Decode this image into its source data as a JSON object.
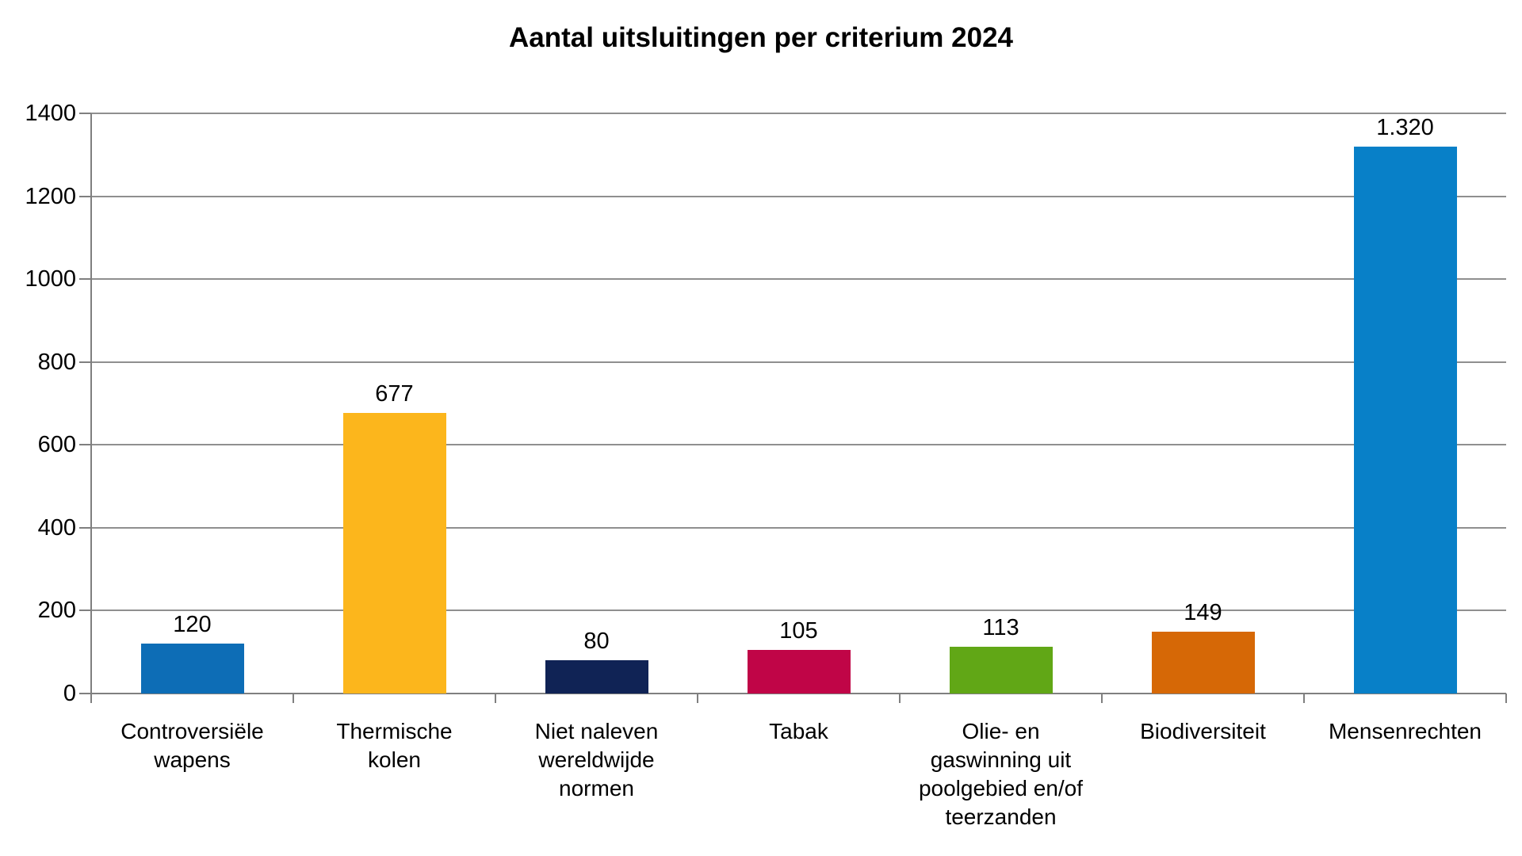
{
  "page": {
    "background": "#ffffff"
  },
  "chart_data": {
    "type": "bar",
    "title": "Aantal uitsluitingen per criterium 2024",
    "categories": [
      "Controversiële wapens",
      "Thermische kolen",
      "Niet naleven wereldwijde normen",
      "Tabak",
      "Olie- en gaswinning uit poolgebied en/of teerzanden",
      "Biodiversiteit",
      "Mensenrechten"
    ],
    "values": [
      120,
      677,
      80,
      105,
      113,
      149,
      1320
    ],
    "value_labels": [
      "120",
      "677",
      "80",
      "105",
      "113",
      "149",
      "1.320"
    ],
    "bar_colors": [
      "#0d6db6",
      "#fcb61c",
      "#102355",
      "#c00547",
      "#61a716",
      "#d66806",
      "#0880c8"
    ],
    "xlabel": "",
    "ylabel": "",
    "ylim": [
      0,
      1400
    ],
    "yticks": [
      0,
      200,
      400,
      600,
      800,
      1000,
      1200,
      1400
    ],
    "ytick_labels": [
      "0",
      "200",
      "400",
      "600",
      "800",
      "1000",
      "1200",
      "1400"
    ],
    "grid": true,
    "legend": "none",
    "styles": {
      "gridline_color": "#8f8f8f",
      "axis_color": "#7f7f7f",
      "text_color": "#000000",
      "label_box_widths": [
        215,
        190,
        210,
        210,
        225,
        225,
        225
      ]
    }
  }
}
